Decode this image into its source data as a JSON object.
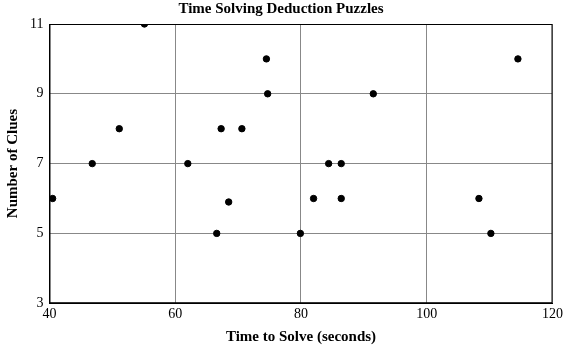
{
  "chart_data": {
    "type": "scatter",
    "title": "Time Solving Deduction Puzzles",
    "x_label": "Time to Solve (seconds)",
    "y_label": "Number of Clues",
    "x": [
      40.5,
      46.8,
      51.1,
      55.1,
      62.0,
      66.6,
      67.3,
      68.5,
      70.6,
      74.5,
      74.7,
      79.9,
      82.0,
      84.4,
      86.4,
      86.4,
      91.5,
      108.3,
      110.2,
      114.5
    ],
    "values": [
      6,
      7,
      8,
      11,
      7,
      5,
      8,
      5.9,
      8,
      10,
      9,
      5,
      6,
      7,
      6,
      7,
      9,
      6,
      5,
      10
    ],
    "color": "#000000",
    "xlim": [
      40,
      120
    ],
    "ylim": [
      3,
      11
    ],
    "xticks": [
      40,
      60,
      80,
      100,
      120
    ],
    "yticks": [
      3,
      5,
      7,
      9,
      11
    ],
    "grid": true
  }
}
